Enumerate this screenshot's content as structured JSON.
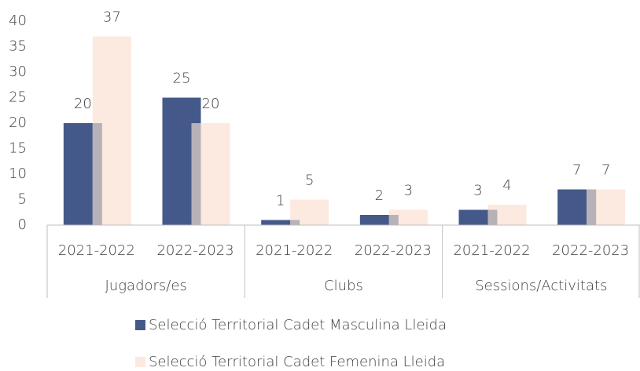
{
  "chart_data": {
    "type": "bar",
    "categories": [
      "2021-2022",
      "2022-2023",
      "2021-2022",
      "2022-2023",
      "2021-2022",
      "2022-2023"
    ],
    "category_groups": [
      "Jugadors/es",
      "Clubs",
      "Sessions/Activitats"
    ],
    "series": [
      {
        "name": "Selecció Territorial Cadet Masculina Lleida",
        "color": "#44598a",
        "values": [
          20,
          25,
          1,
          2,
          3,
          7
        ]
      },
      {
        "name": "Selecció Territorial Cadet Femenina Lleida",
        "color": "#fce9df",
        "values": [
          37,
          20,
          5,
          3,
          4,
          7
        ]
      }
    ],
    "ylim": [
      0,
      40
    ],
    "yticks": [
      0,
      5,
      10,
      15,
      20,
      25,
      30,
      35,
      40
    ],
    "grid": false
  }
}
